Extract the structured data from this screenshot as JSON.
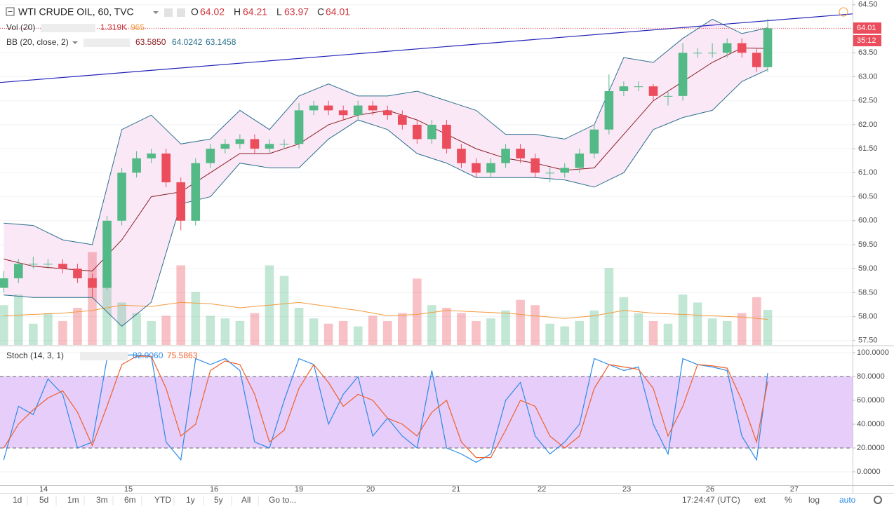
{
  "chart_data": [
    {
      "type": "candlestick",
      "title": "WTI CRUDE OIL, 60, TVC",
      "ohlc_labels": [
        "O",
        "H",
        "L",
        "C"
      ],
      "ohlc_values": [
        64.02,
        64.21,
        63.97,
        64.01
      ],
      "x": [
        1,
        5,
        9,
        13,
        17,
        21,
        25,
        29,
        33,
        37,
        41,
        45,
        49,
        53,
        57,
        61,
        65,
        69,
        73,
        77,
        81,
        85,
        89,
        93,
        97,
        101,
        105,
        109,
        113,
        117,
        121,
        125,
        129,
        133,
        137,
        141,
        145,
        149,
        153,
        157,
        161,
        165,
        169,
        173,
        177,
        181,
        185,
        189,
        193,
        197,
        201,
        205,
        208
      ],
      "open": [
        58.6,
        58.8,
        59.1,
        59.1,
        59.1,
        59.0,
        58.8,
        58.6,
        60.0,
        61.0,
        61.3,
        61.4,
        60.8,
        60.0,
        61.2,
        61.5,
        61.6,
        61.7,
        61.5,
        61.6,
        61.6,
        62.3,
        62.4,
        62.3,
        62.2,
        62.4,
        62.3,
        62.2,
        62.0,
        61.7,
        62.0,
        61.5,
        61.2,
        61.0,
        61.2,
        61.5,
        61.3,
        61.0,
        61.0,
        61.1,
        61.4,
        61.9,
        62.7,
        62.8,
        62.8,
        62.6,
        62.6,
        63.5,
        63.5,
        63.5,
        63.7,
        63.5,
        63.2
      ],
      "high": [
        58.95,
        59.2,
        59.25,
        59.2,
        59.2,
        59.1,
        58.9,
        60.1,
        61.1,
        61.45,
        61.5,
        61.5,
        60.9,
        61.3,
        61.6,
        61.7,
        61.8,
        61.8,
        61.7,
        61.7,
        62.45,
        62.5,
        62.5,
        62.4,
        62.5,
        62.5,
        62.4,
        62.3,
        62.1,
        62.1,
        62.1,
        61.6,
        61.3,
        61.3,
        61.6,
        61.6,
        61.4,
        61.1,
        61.2,
        61.5,
        62.0,
        63.05,
        62.9,
        62.9,
        62.85,
        62.7,
        63.7,
        63.6,
        63.7,
        63.8,
        63.8,
        63.6,
        64.21
      ],
      "low": [
        58.5,
        58.7,
        59.0,
        59.0,
        58.9,
        58.7,
        58.4,
        58.55,
        59.9,
        60.9,
        61.2,
        60.7,
        59.8,
        59.9,
        61.1,
        61.4,
        61.5,
        61.4,
        61.4,
        61.5,
        61.5,
        62.2,
        62.2,
        62.1,
        62.1,
        62.2,
        62.1,
        61.9,
        61.6,
        61.6,
        61.4,
        61.1,
        60.9,
        60.9,
        61.1,
        61.2,
        60.9,
        60.8,
        60.9,
        61.0,
        61.3,
        61.8,
        62.6,
        62.7,
        62.5,
        62.4,
        62.5,
        63.4,
        63.4,
        63.4,
        63.4,
        63.1,
        63.1
      ],
      "close": [
        58.8,
        59.1,
        59.1,
        59.1,
        59.0,
        58.8,
        58.6,
        60.0,
        61.0,
        61.3,
        61.4,
        60.8,
        60.0,
        61.2,
        61.5,
        61.6,
        61.7,
        61.5,
        61.6,
        61.6,
        62.3,
        62.4,
        62.3,
        62.2,
        62.4,
        62.3,
        62.2,
        62.0,
        61.7,
        62.0,
        61.5,
        61.2,
        61.0,
        61.2,
        61.5,
        61.3,
        61.0,
        61.0,
        61.1,
        61.4,
        61.9,
        62.7,
        62.8,
        62.8,
        62.6,
        62.6,
        63.5,
        63.5,
        63.5,
        63.7,
        63.5,
        63.2,
        64.01
      ],
      "colors": {
        "up": "#53b987",
        "down": "#eb4d5c"
      },
      "volume": {
        "name": "Vol (20)",
        "values": [
          1500,
          1900,
          800,
          1200,
          900,
          1400,
          3500,
          2800,
          1600,
          1200,
          900,
          1100,
          3000,
          2000,
          1100,
          1000,
          900,
          1200,
          3000,
          2600,
          1400,
          1000,
          800,
          900,
          700,
          1100,
          900,
          1200,
          2500,
          1500,
          1400,
          1200,
          900,
          1000,
          1300,
          1700,
          1500,
          800,
          700,
          900,
          1300,
          2900,
          1800,
          1200,
          900,
          800,
          1900,
          1600,
          1000,
          900,
          1200,
          1800,
          1319
        ],
        "ma": [
          1100,
          1150,
          1200,
          1300,
          1500,
          1450,
          1600,
          1550,
          1400,
          1500,
          1600,
          1450,
          1300,
          1100,
          1150,
          1300,
          1250,
          1200,
          1100,
          1000,
          1100,
          1300,
          1200,
          1150,
          1100,
          1050,
          965
        ],
        "ma_color": "#f39a3c",
        "legend_labels": [
          "1.319K",
          "965"
        ],
        "lim": [
          0,
          13000
        ]
      },
      "bb": {
        "name": "BB (20, close, 2)",
        "x": [
          1,
          9,
          17,
          25,
          33,
          41,
          49,
          57,
          65,
          73,
          81,
          89,
          97,
          105,
          113,
          121,
          129,
          137,
          145,
          153,
          161,
          169,
          177,
          185,
          193,
          201,
          208
        ],
        "upper": [
          59.95,
          59.9,
          59.6,
          59.5,
          61.9,
          62.2,
          61.6,
          61.7,
          62.3,
          61.9,
          62.6,
          62.85,
          62.6,
          62.6,
          62.7,
          62.5,
          62.3,
          61.8,
          61.8,
          61.7,
          62.0,
          63.4,
          63.3,
          63.8,
          64.2,
          63.9,
          64.02
        ],
        "middle": [
          59.2,
          59.05,
          59.0,
          58.95,
          59.6,
          60.5,
          60.6,
          61.0,
          61.4,
          61.4,
          61.6,
          62.0,
          62.2,
          62.3,
          62.1,
          61.8,
          61.5,
          61.3,
          61.2,
          61.05,
          61.1,
          61.8,
          62.5,
          62.9,
          63.3,
          63.6,
          63.59
        ],
        "lower": [
          58.45,
          58.4,
          58.4,
          58.4,
          57.8,
          58.3,
          60.35,
          60.5,
          61.2,
          61.1,
          61.1,
          61.7,
          62.1,
          61.9,
          61.4,
          61.2,
          60.9,
          60.9,
          60.9,
          60.85,
          60.7,
          61.0,
          61.9,
          62.15,
          62.3,
          62.9,
          63.15
        ],
        "band_color": "#fbe8f7",
        "edge_color": "#2a6f8c",
        "middle_color": "#8b1c22",
        "legend_labels": [
          "63.5850",
          "64.0242",
          "63.1458"
        ]
      },
      "trendline": {
        "x": [
          0,
          231
        ],
        "values": [
          62.88,
          64.31
        ],
        "color": "#2323b8"
      },
      "last_price": 64.01,
      "countdown": "35:12",
      "xlim": [
        0,
        231
      ],
      "xticks": [
        {
          "value": 11.8,
          "label": "14"
        },
        {
          "value": 34.8,
          "label": "15"
        },
        {
          "value": 58,
          "label": "16"
        },
        {
          "value": 81,
          "label": "19"
        },
        {
          "value": 100.4,
          "label": "20"
        },
        {
          "value": 123.6,
          "label": "21"
        },
        {
          "value": 146.8,
          "label": "22"
        },
        {
          "value": 169.8,
          "label": "23"
        },
        {
          "value": 192.4,
          "label": "26"
        },
        {
          "value": 215.2,
          "label": "27"
        }
      ],
      "ylim": [
        57.41,
        64.6
      ],
      "yticks": [
        {
          "value": 57.5,
          "label": "57.50"
        },
        {
          "value": 58,
          "label": "58.00"
        },
        {
          "value": 58.5,
          "label": "58.50"
        },
        {
          "value": 59,
          "label": "59.00"
        },
        {
          "value": 59.5,
          "label": "59.50"
        },
        {
          "value": 60,
          "label": "60.00"
        },
        {
          "value": 60.5,
          "label": "60.50"
        },
        {
          "value": 61,
          "label": "61.00"
        },
        {
          "value": 61.5,
          "label": "61.50"
        },
        {
          "value": 62,
          "label": "62.00"
        },
        {
          "value": 62.5,
          "label": "62.50"
        },
        {
          "value": 63,
          "label": "63.00"
        },
        {
          "value": 63.5,
          "label": "63.50"
        },
        {
          "value": 64,
          "label": "64.00"
        },
        {
          "value": 64.5,
          "label": "64.50"
        }
      ],
      "grid": true
    },
    {
      "type": "line",
      "title": "Stoch (14, 3, 1)",
      "legend_labels": [
        "82.9060",
        "75.5863"
      ],
      "x": [
        1,
        5,
        9,
        13,
        17,
        21,
        25,
        29,
        33,
        37,
        41,
        45,
        49,
        53,
        57,
        61,
        65,
        69,
        73,
        77,
        81,
        85,
        89,
        93,
        97,
        101,
        105,
        109,
        113,
        117,
        121,
        125,
        129,
        133,
        137,
        141,
        145,
        149,
        153,
        157,
        161,
        165,
        169,
        173,
        177,
        181,
        185,
        189,
        193,
        197,
        201,
        205,
        208
      ],
      "series": [
        {
          "color": "#2d8ae8",
          "values": [
            10,
            55,
            48,
            78,
            65,
            20,
            25,
            95,
            98,
            98,
            97,
            25,
            10,
            95,
            90,
            95,
            85,
            25,
            20,
            60,
            95,
            90,
            40,
            65,
            80,
            30,
            45,
            30,
            20,
            85,
            20,
            15,
            8,
            15,
            60,
            75,
            30,
            15,
            25,
            40,
            95,
            90,
            85,
            88,
            40,
            15,
            95,
            90,
            88,
            85,
            30,
            10,
            82.9
          ]
        },
        {
          "color": "#f0602a",
          "values": [
            20,
            40,
            52,
            62,
            68,
            50,
            22,
            55,
            90,
            97,
            97,
            70,
            30,
            40,
            85,
            93,
            90,
            65,
            25,
            35,
            70,
            90,
            75,
            55,
            65,
            60,
            45,
            40,
            30,
            50,
            60,
            25,
            12,
            12,
            35,
            60,
            55,
            30,
            20,
            30,
            70,
            90,
            88,
            86,
            70,
            30,
            55,
            90,
            89,
            87,
            60,
            25,
            75.6
          ]
        }
      ],
      "levels": [
        20,
        80
      ],
      "band_color": "#e6cdfa",
      "ylim": [
        -11.2,
        105.3
      ],
      "yticks": [
        {
          "value": 0,
          "label": "0.0000"
        },
        {
          "value": 20,
          "label": "20.0000"
        },
        {
          "value": 40,
          "label": "40.0000"
        },
        {
          "value": 60,
          "label": "60.0000"
        },
        {
          "value": 80,
          "label": "80.0000"
        },
        {
          "value": 100,
          "label": "100.0000"
        }
      ],
      "grid": true
    }
  ],
  "toolbar": {
    "ranges": [
      "1d",
      "5d",
      "1m",
      "3m",
      "6m",
      "YTD",
      "1y",
      "5y",
      "All"
    ],
    "goto": "Go to...",
    "clock": "17:24:47 (UTC)",
    "options": [
      "ext",
      "%",
      "log",
      "auto"
    ]
  }
}
